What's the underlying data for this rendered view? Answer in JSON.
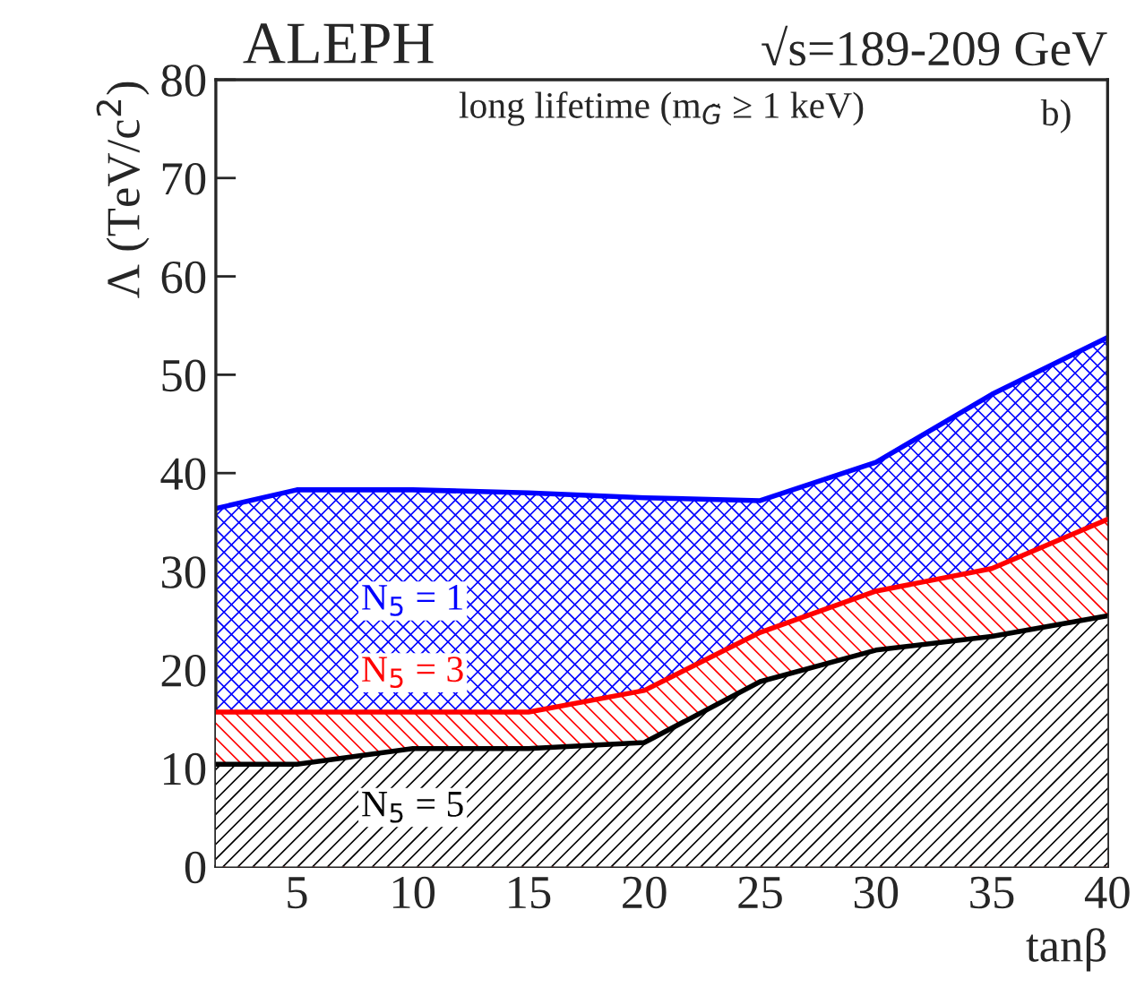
{
  "chart_data": {
    "type": "area",
    "title": "ALEPH",
    "annotations": [
      "√s=189-209 GeV",
      "long lifetime (m$_{G̃}$ ≥ 1 keV)",
      "b)"
    ],
    "xlabel": "tanβ",
    "ylabel": "Λ (TeV/c$^{2}$)",
    "x": [
      1.5,
      5,
      10,
      15,
      20,
      25,
      30,
      35,
      40
    ],
    "series": [
      {
        "name": "N$_{5}$ = 1",
        "color": "#0000ff",
        "values": [
          36.4,
          38.3,
          38.3,
          38.0,
          37.5,
          37.2,
          41.1,
          48.0,
          53.8
        ]
      },
      {
        "name": "N$_{5}$ = 3",
        "color": "#ff0000",
        "values": [
          15.7,
          15.7,
          15.7,
          15.7,
          17.9,
          23.8,
          28.0,
          30.3,
          35.3
        ]
      },
      {
        "name": "N$_{5}$ = 5",
        "color": "#000000",
        "values": [
          10.4,
          10.4,
          12.0,
          12.0,
          12.6,
          18.8,
          22.0,
          23.4,
          25.5
        ]
      }
    ],
    "xlim": [
      1.5,
      40
    ],
    "ylim": [
      0,
      80
    ],
    "xticks": [
      5,
      10,
      15,
      20,
      25,
      30,
      35,
      40
    ],
    "yticks": [
      0,
      10,
      20,
      30,
      40,
      50,
      60,
      70,
      80
    ],
    "grid": false,
    "legend": false
  }
}
